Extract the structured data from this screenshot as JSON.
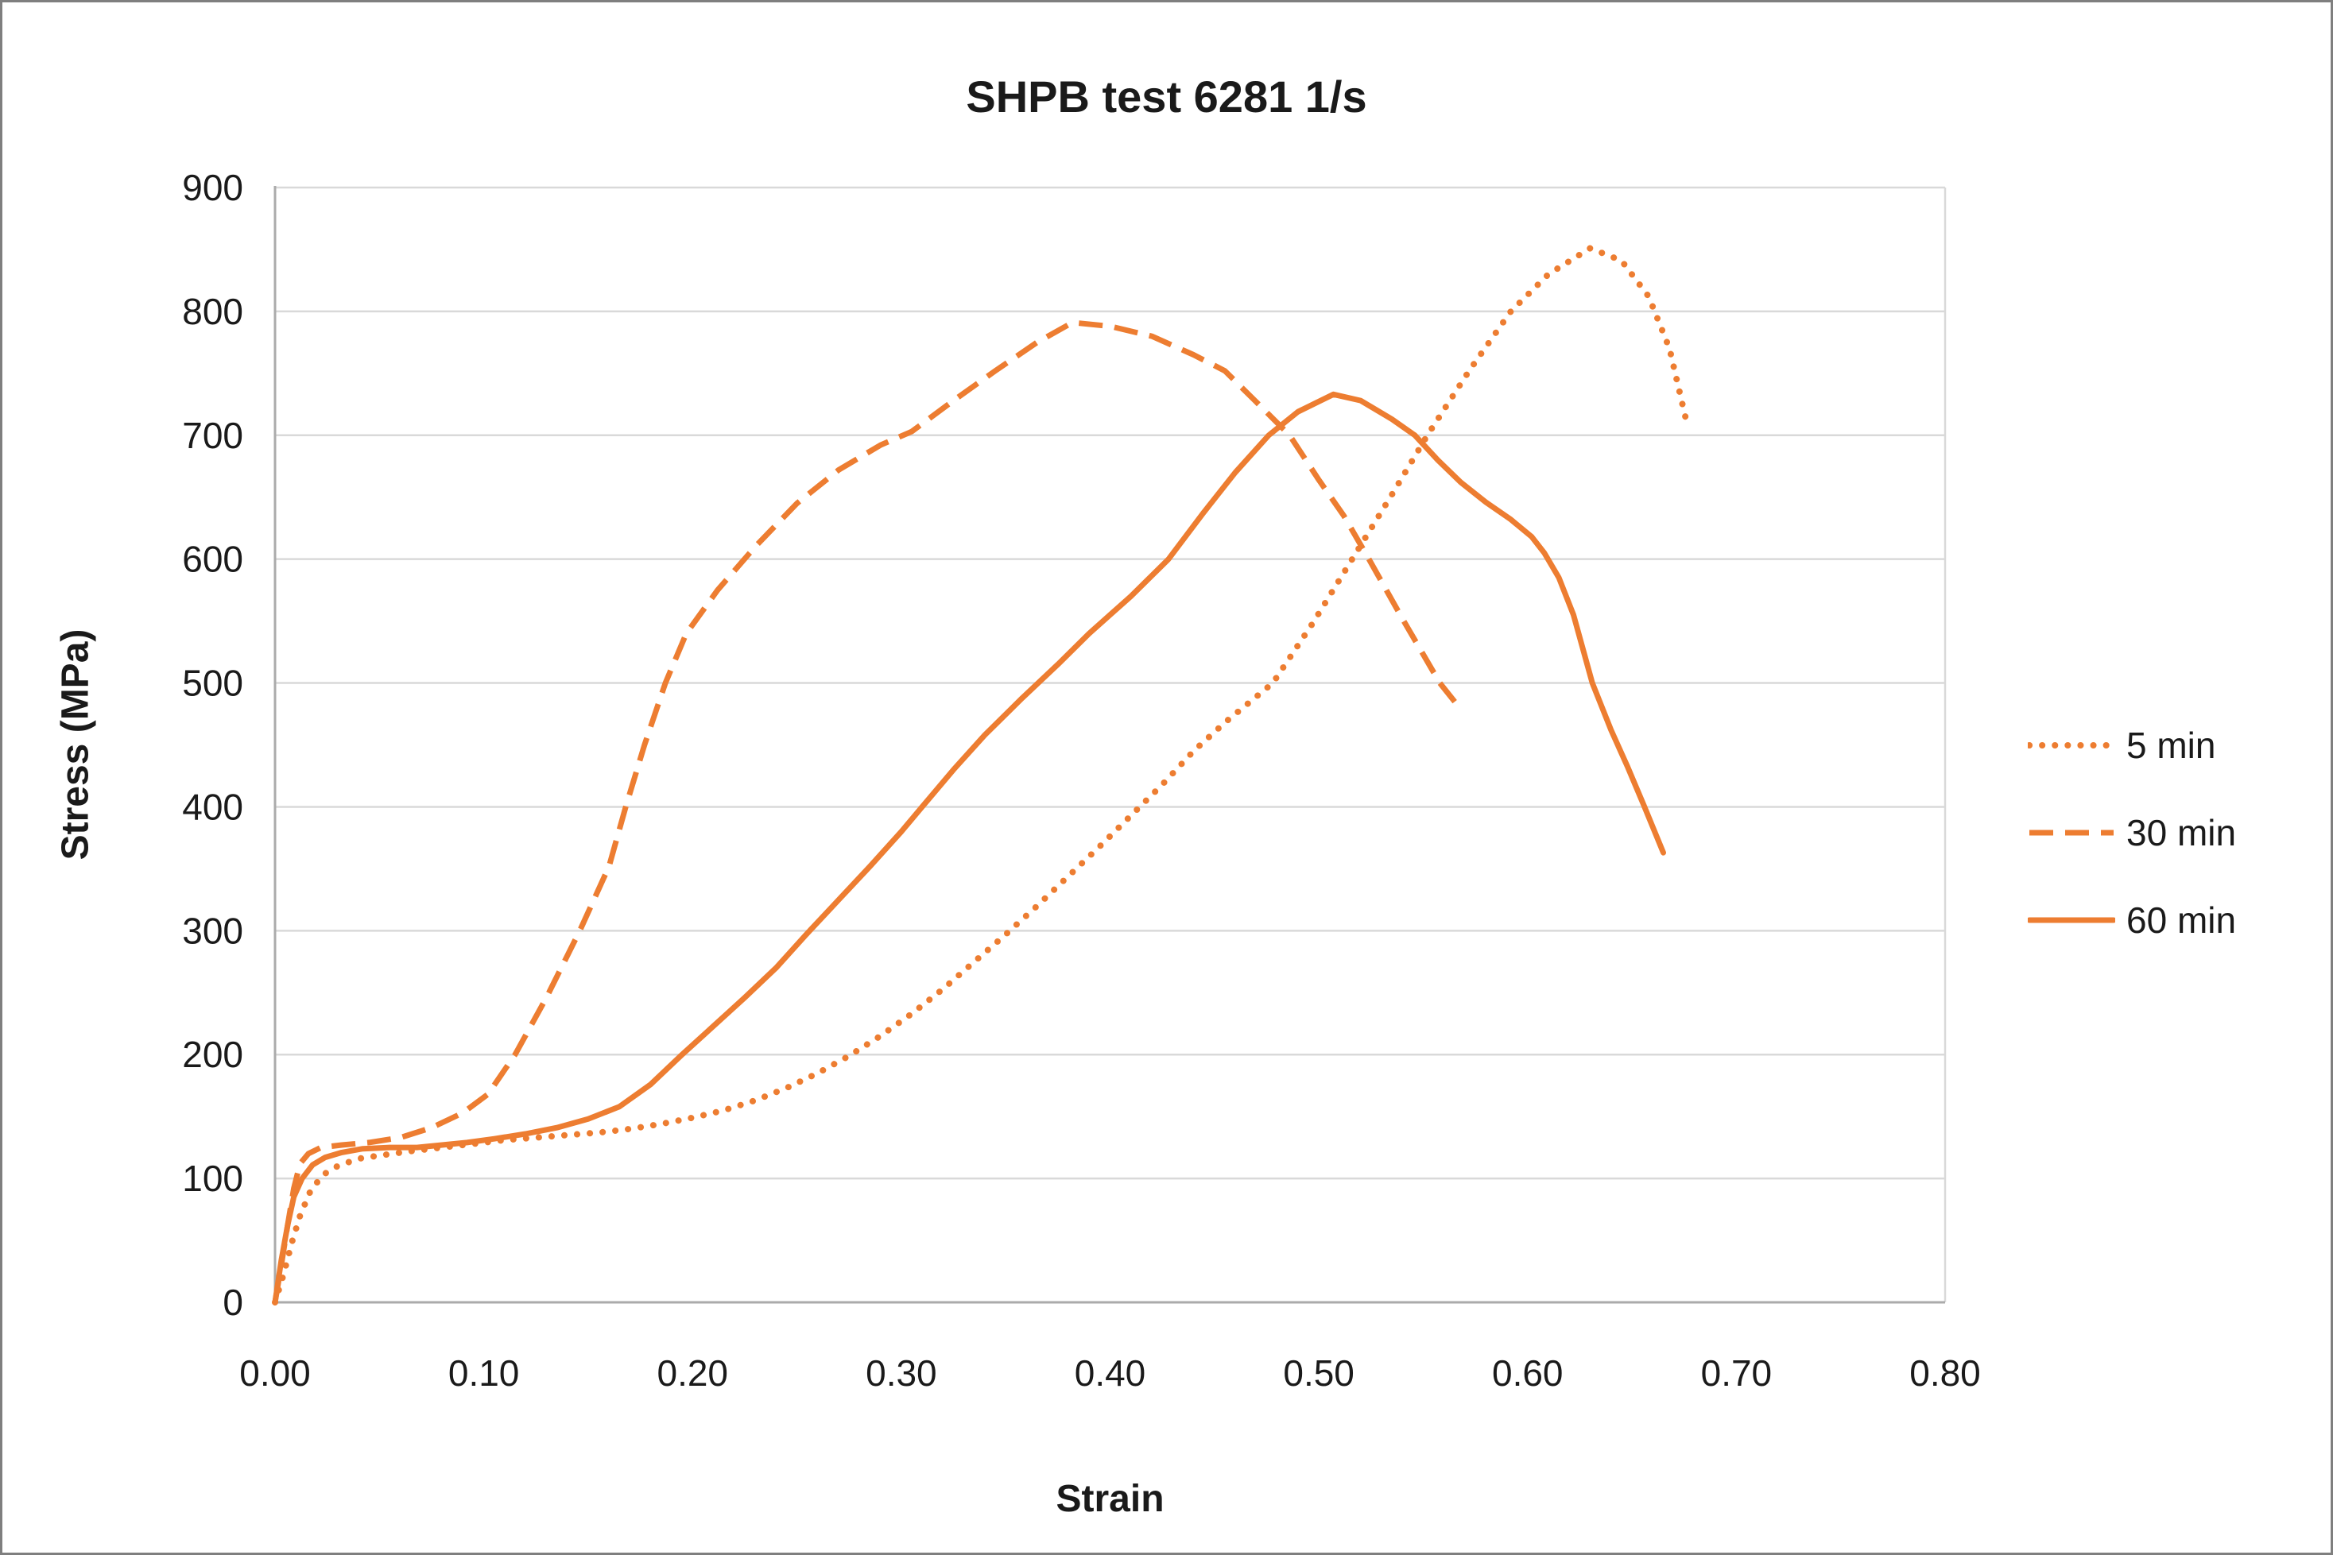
{
  "chart_data": {
    "type": "line",
    "title": "SHPB test 6281 1/s",
    "xlabel": "Strain",
    "ylabel": "Stress (MPa)",
    "xlim": [
      0,
      0.8
    ],
    "ylim": [
      0,
      900
    ],
    "x_ticks": [
      {
        "value": 0.0,
        "label": "0.00"
      },
      {
        "value": 0.1,
        "label": "0.10"
      },
      {
        "value": 0.2,
        "label": "0.20"
      },
      {
        "value": 0.3,
        "label": "0.30"
      },
      {
        "value": 0.4,
        "label": "0.40"
      },
      {
        "value": 0.5,
        "label": "0.50"
      },
      {
        "value": 0.6,
        "label": "0.60"
      },
      {
        "value": 0.7,
        "label": "0.70"
      },
      {
        "value": 0.8,
        "label": "0.80"
      }
    ],
    "y_ticks": [
      {
        "value": 0,
        "label": "0"
      },
      {
        "value": 100,
        "label": "100"
      },
      {
        "value": 200,
        "label": "200"
      },
      {
        "value": 300,
        "label": "300"
      },
      {
        "value": 400,
        "label": "400"
      },
      {
        "value": 500,
        "label": "500"
      },
      {
        "value": 600,
        "label": "600"
      },
      {
        "value": 700,
        "label": "700"
      },
      {
        "value": 800,
        "label": "800"
      },
      {
        "value": 900,
        "label": "900"
      }
    ],
    "grid": "horizontal",
    "legend_position": "right",
    "colors": {
      "series": "#ED7D31",
      "gridline": "#D9D9D9",
      "axis_line": "#ABABAB",
      "text": "#1a1a1a",
      "frame_border": "#7f7f7f"
    },
    "series": [
      {
        "name": "5 min",
        "style": "dotted",
        "points": [
          [
            0,
            0
          ],
          [
            0.004,
            22
          ],
          [
            0.008,
            48
          ],
          [
            0.012,
            70
          ],
          [
            0.017,
            90
          ],
          [
            0.023,
            103
          ],
          [
            0.03,
            110
          ],
          [
            0.04,
            116
          ],
          [
            0.052,
            119
          ],
          [
            0.065,
            122
          ],
          [
            0.08,
            125
          ],
          [
            0.095,
            128
          ],
          [
            0.11,
            131
          ],
          [
            0.125,
            133
          ],
          [
            0.14,
            135
          ],
          [
            0.155,
            137
          ],
          [
            0.17,
            140
          ],
          [
            0.185,
            144
          ],
          [
            0.2,
            149
          ],
          [
            0.215,
            155
          ],
          [
            0.23,
            163
          ],
          [
            0.245,
            173
          ],
          [
            0.26,
            185
          ],
          [
            0.275,
            199
          ],
          [
            0.29,
            215
          ],
          [
            0.305,
            233
          ],
          [
            0.32,
            253
          ],
          [
            0.335,
            275
          ],
          [
            0.35,
            297
          ],
          [
            0.365,
            320
          ],
          [
            0.38,
            344
          ],
          [
            0.395,
            368
          ],
          [
            0.41,
            393
          ],
          [
            0.425,
            418
          ],
          [
            0.44,
            445
          ],
          [
            0.455,
            468
          ],
          [
            0.478,
            500
          ],
          [
            0.497,
            548
          ],
          [
            0.516,
            600
          ],
          [
            0.535,
            652
          ],
          [
            0.552,
            700
          ],
          [
            0.572,
            752
          ],
          [
            0.592,
            800
          ],
          [
            0.61,
            830
          ],
          [
            0.63,
            851
          ],
          [
            0.645,
            841
          ],
          [
            0.658,
            812
          ],
          [
            0.668,
            770
          ],
          [
            0.676,
            712
          ]
        ]
      },
      {
        "name": "30 min",
        "style": "dashed",
        "points": [
          [
            0,
            0
          ],
          [
            0.003,
            30
          ],
          [
            0.006,
            62
          ],
          [
            0.009,
            92
          ],
          [
            0.012,
            112
          ],
          [
            0.016,
            120
          ],
          [
            0.022,
            125
          ],
          [
            0.032,
            127
          ],
          [
            0.045,
            129
          ],
          [
            0.06,
            133
          ],
          [
            0.075,
            141
          ],
          [
            0.09,
            153
          ],
          [
            0.102,
            168
          ],
          [
            0.115,
            200
          ],
          [
            0.13,
            246
          ],
          [
            0.146,
            300
          ],
          [
            0.16,
            352
          ],
          [
            0.168,
            400
          ],
          [
            0.177,
            450
          ],
          [
            0.187,
            500
          ],
          [
            0.197,
            540
          ],
          [
            0.212,
            575
          ],
          [
            0.23,
            610
          ],
          [
            0.25,
            645
          ],
          [
            0.27,
            672
          ],
          [
            0.29,
            692
          ],
          [
            0.305,
            703
          ],
          [
            0.325,
            728
          ],
          [
            0.345,
            752
          ],
          [
            0.365,
            775
          ],
          [
            0.382,
            791
          ],
          [
            0.4,
            788
          ],
          [
            0.42,
            780
          ],
          [
            0.44,
            765
          ],
          [
            0.455,
            752
          ],
          [
            0.47,
            727
          ],
          [
            0.486,
            700
          ],
          [
            0.5,
            664
          ],
          [
            0.512,
            635
          ],
          [
            0.524,
            600
          ],
          [
            0.54,
            552
          ],
          [
            0.558,
            500
          ],
          [
            0.566,
            483
          ]
        ]
      },
      {
        "name": "60 min",
        "style": "solid",
        "points": [
          [
            0,
            0
          ],
          [
            0.003,
            34
          ],
          [
            0.006,
            62
          ],
          [
            0.009,
            85
          ],
          [
            0.013,
            100
          ],
          [
            0.018,
            111
          ],
          [
            0.024,
            117
          ],
          [
            0.032,
            121
          ],
          [
            0.042,
            124
          ],
          [
            0.055,
            125
          ],
          [
            0.068,
            125
          ],
          [
            0.08,
            127
          ],
          [
            0.092,
            129
          ],
          [
            0.105,
            132
          ],
          [
            0.12,
            136
          ],
          [
            0.135,
            141
          ],
          [
            0.15,
            148
          ],
          [
            0.165,
            158
          ],
          [
            0.18,
            176
          ],
          [
            0.195,
            200
          ],
          [
            0.21,
            223
          ],
          [
            0.225,
            246
          ],
          [
            0.24,
            270
          ],
          [
            0.255,
            298
          ],
          [
            0.27,
            325
          ],
          [
            0.285,
            352
          ],
          [
            0.3,
            380
          ],
          [
            0.31,
            400
          ],
          [
            0.325,
            430
          ],
          [
            0.34,
            458
          ],
          [
            0.358,
            488
          ],
          [
            0.375,
            515
          ],
          [
            0.39,
            540
          ],
          [
            0.41,
            570
          ],
          [
            0.428,
            600
          ],
          [
            0.445,
            638
          ],
          [
            0.46,
            670
          ],
          [
            0.476,
            700
          ],
          [
            0.49,
            719
          ],
          [
            0.507,
            733
          ],
          [
            0.52,
            728
          ],
          [
            0.535,
            713
          ],
          [
            0.546,
            700
          ],
          [
            0.557,
            680
          ],
          [
            0.568,
            662
          ],
          [
            0.58,
            646
          ],
          [
            0.592,
            632
          ],
          [
            0.602,
            618
          ],
          [
            0.608,
            605
          ],
          [
            0.615,
            585
          ],
          [
            0.622,
            555
          ],
          [
            0.631,
            500
          ],
          [
            0.64,
            462
          ],
          [
            0.648,
            432
          ],
          [
            0.656,
            400
          ],
          [
            0.665,
            363
          ]
        ]
      }
    ]
  }
}
